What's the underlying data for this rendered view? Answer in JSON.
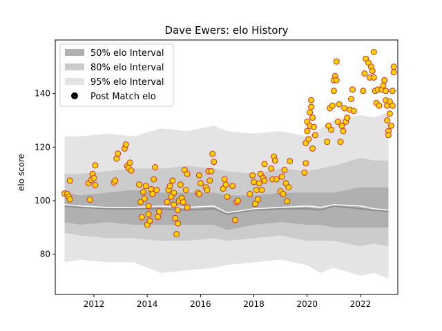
{
  "chart_data": {
    "type": "scatter",
    "title": "Dave Ewers: elo History",
    "xlabel": "",
    "ylabel": "elo score",
    "xlim": [
      2010.55,
      2023.4
    ],
    "ylim": [
      65,
      160
    ],
    "xticks": [
      2012,
      2014,
      2016,
      2018,
      2020,
      2022
    ],
    "xtick_labels": [
      "2012",
      "2014",
      "2016",
      "2018",
      "2020",
      "2022"
    ],
    "yticks": [
      80,
      100,
      120,
      140
    ],
    "ytick_labels": [
      "80",
      "100",
      "120",
      "140"
    ],
    "grid": false,
    "legend_position": "top-left",
    "legend": [
      {
        "label": "50% elo Interval",
        "kind": "patch",
        "color": "#b0b0b0"
      },
      {
        "label": "80% elo Interval",
        "kind": "patch",
        "color": "#cccccc"
      },
      {
        "label": "95% elo Interval",
        "kind": "patch",
        "color": "#e4e4e4"
      },
      {
        "label": "Post Match elo",
        "kind": "marker",
        "color": "#000000"
      }
    ],
    "colors": {
      "band95": "#e4e4e4",
      "band80": "#cccccc",
      "band50": "#b0b0b0",
      "median_line": "#8c8c8c",
      "mean_line": "#ffffff",
      "point_fill": "#ffd400",
      "point_edge": "#d12a2a"
    },
    "bands": {
      "x": [
        2010.9,
        2011.5,
        2012.5,
        2013.5,
        2014.5,
        2015.5,
        2016.5,
        2017.0,
        2018.0,
        2019.0,
        2020.0,
        2020.5,
        2021.0,
        2022.0,
        2022.5,
        2023.05
      ],
      "p2_5": [
        77,
        78,
        77,
        77,
        73,
        74,
        75,
        76,
        77,
        78,
        76,
        73,
        75,
        72,
        73,
        71
      ],
      "p10": [
        88,
        87,
        86,
        86,
        85,
        85,
        86,
        85,
        86,
        87,
        85,
        85,
        85,
        83,
        84,
        83
      ],
      "p25": [
        92,
        91,
        92,
        91,
        91,
        91,
        91,
        89,
        91,
        92,
        91,
        91,
        90,
        90,
        90,
        90
      ],
      "p50": [
        98,
        97.5,
        97,
        97,
        97,
        96.5,
        97,
        95,
        96.5,
        97,
        97,
        96.5,
        98,
        97,
        96.5,
        96
      ],
      "mean": [
        98.5,
        98,
        97.5,
        97.5,
        98,
        97.5,
        98,
        95.5,
        97,
        97.5,
        98,
        97.5,
        98.5,
        98,
        97,
        96.5
      ],
      "p75": [
        103,
        102,
        103,
        104,
        103,
        103,
        103,
        102,
        102,
        103,
        103,
        103,
        103,
        105,
        105,
        105
      ],
      "p90": [
        110,
        110,
        111,
        112,
        112,
        113,
        112,
        111,
        110,
        112,
        111,
        112,
        113,
        116,
        115,
        115
      ],
      "p97_5": [
        124,
        124,
        125,
        124,
        127,
        126,
        128,
        126,
        125,
        126,
        124,
        127,
        130,
        132,
        131,
        133
      ]
    },
    "series": [
      {
        "name": "Post Match elo",
        "points": [
          [
            2010.9,
            102.7
          ],
          [
            2011.0,
            102.5
          ],
          [
            2011.05,
            101.5
          ],
          [
            2011.1,
            100.5
          ],
          [
            2011.1,
            107.5
          ],
          [
            2011.8,
            106.5
          ],
          [
            2011.85,
            100.4
          ],
          [
            2011.9,
            107.8
          ],
          [
            2011.95,
            110
          ],
          [
            2012.0,
            108.5
          ],
          [
            2012.05,
            105.8
          ],
          [
            2012.05,
            113.2
          ],
          [
            2012.75,
            106.8
          ],
          [
            2012.8,
            107.5
          ],
          [
            2012.85,
            115.7
          ],
          [
            2012.9,
            117.6
          ],
          [
            2013.15,
            119.5
          ],
          [
            2013.2,
            121
          ],
          [
            2013.25,
            113
          ],
          [
            2013.3,
            112.2
          ],
          [
            2013.35,
            114.2
          ],
          [
            2013.4,
            111.3
          ],
          [
            2013.7,
            106
          ],
          [
            2013.75,
            99.5
          ],
          [
            2013.8,
            93.8
          ],
          [
            2013.85,
            103.3
          ],
          [
            2013.9,
            100.8
          ],
          [
            2013.95,
            105.5
          ],
          [
            2014.0,
            91
          ],
          [
            2014.05,
            95
          ],
          [
            2014.05,
            98
          ],
          [
            2014.1,
            92.5
          ],
          [
            2014.15,
            104.3
          ],
          [
            2014.2,
            102.5
          ],
          [
            2014.25,
            108
          ],
          [
            2014.3,
            112.5
          ],
          [
            2014.35,
            104
          ],
          [
            2014.4,
            94
          ],
          [
            2014.45,
            96
          ],
          [
            2014.75,
            99.5
          ],
          [
            2014.8,
            104
          ],
          [
            2014.85,
            105.5
          ],
          [
            2014.9,
            101.5
          ],
          [
            2014.95,
            107.5
          ],
          [
            2015.0,
            103
          ],
          [
            2015.0,
            98.5
          ],
          [
            2015.05,
            93.5
          ],
          [
            2015.1,
            87.5
          ],
          [
            2015.15,
            91.5
          ],
          [
            2015.15,
            96.5
          ],
          [
            2015.2,
            100
          ],
          [
            2015.25,
            106
          ],
          [
            2015.3,
            101
          ],
          [
            2015.35,
            99.5
          ],
          [
            2015.4,
            111.5
          ],
          [
            2015.45,
            104
          ],
          [
            2015.5,
            110
          ],
          [
            2015.5,
            97.5
          ],
          [
            2015.9,
            103
          ],
          [
            2015.95,
            109.5
          ],
          [
            2015.95,
            102.5
          ],
          [
            2016.0,
            106.5
          ],
          [
            2016.2,
            105
          ],
          [
            2016.25,
            104
          ],
          [
            2016.3,
            111
          ],
          [
            2016.35,
            107.5
          ],
          [
            2016.4,
            111
          ],
          [
            2016.45,
            117.5
          ],
          [
            2016.5,
            114.5
          ],
          [
            2016.85,
            104.5
          ],
          [
            2016.9,
            108
          ],
          [
            2016.95,
            106
          ],
          [
            2017.0,
            101.5
          ],
          [
            2017.2,
            105.5
          ],
          [
            2017.3,
            92.8
          ],
          [
            2017.35,
            99.5
          ],
          [
            2017.4,
            100
          ],
          [
            2017.85,
            102.5
          ],
          [
            2017.95,
            109.5
          ],
          [
            2018.0,
            107
          ],
          [
            2018.05,
            98.8
          ],
          [
            2018.1,
            104
          ],
          [
            2018.15,
            100.5
          ],
          [
            2018.2,
            106.5
          ],
          [
            2018.25,
            110
          ],
          [
            2018.3,
            104
          ],
          [
            2018.35,
            108.5
          ],
          [
            2018.4,
            113.7
          ],
          [
            2018.4,
            107.5
          ],
          [
            2018.65,
            112
          ],
          [
            2018.7,
            108
          ],
          [
            2018.75,
            116.5
          ],
          [
            2018.8,
            115
          ],
          [
            2018.85,
            108
          ],
          [
            2019.0,
            103.5
          ],
          [
            2019.05,
            109
          ],
          [
            2019.1,
            102.5
          ],
          [
            2019.15,
            111.5
          ],
          [
            2019.2,
            106.5
          ],
          [
            2019.25,
            99.8
          ],
          [
            2019.3,
            105
          ],
          [
            2019.35,
            114.8
          ],
          [
            2019.9,
            110.5
          ],
          [
            2019.95,
            114
          ],
          [
            2019.95,
            121.5
          ],
          [
            2020.0,
            126
          ],
          [
            2020.0,
            129.5
          ],
          [
            2020.05,
            123
          ],
          [
            2020.1,
            128
          ],
          [
            2020.1,
            133
          ],
          [
            2020.15,
            135
          ],
          [
            2020.15,
            137.5
          ],
          [
            2020.2,
            131
          ],
          [
            2020.2,
            119.5
          ],
          [
            2020.25,
            127.5
          ],
          [
            2020.3,
            124.5
          ],
          [
            2020.75,
            122
          ],
          [
            2020.8,
            128
          ],
          [
            2020.85,
            134.5
          ],
          [
            2020.9,
            126.5
          ],
          [
            2020.95,
            135.5
          ],
          [
            2021.0,
            141
          ],
          [
            2021.0,
            145
          ],
          [
            2021.05,
            146.5
          ],
          [
            2021.1,
            152
          ],
          [
            2021.1,
            145
          ],
          [
            2021.15,
            129.5
          ],
          [
            2021.2,
            136
          ],
          [
            2021.25,
            122
          ],
          [
            2021.3,
            128
          ],
          [
            2021.35,
            126
          ],
          [
            2021.4,
            134.5
          ],
          [
            2021.45,
            129.5
          ],
          [
            2021.5,
            131
          ],
          [
            2021.6,
            134
          ],
          [
            2021.65,
            138
          ],
          [
            2021.7,
            141.5
          ],
          [
            2021.75,
            133.5
          ],
          [
            2022.1,
            141
          ],
          [
            2022.15,
            147.5
          ],
          [
            2022.2,
            153
          ],
          [
            2022.3,
            151.5
          ],
          [
            2022.35,
            146
          ],
          [
            2022.4,
            150
          ],
          [
            2022.45,
            148.5
          ],
          [
            2022.5,
            155.5
          ],
          [
            2022.5,
            146
          ],
          [
            2022.55,
            141
          ],
          [
            2022.6,
            136.5
          ],
          [
            2022.65,
            141.5
          ],
          [
            2022.7,
            135.5
          ],
          [
            2022.8,
            141.5
          ],
          [
            2022.85,
            143
          ],
          [
            2022.9,
            145
          ],
          [
            2022.95,
            141
          ],
          [
            2022.95,
            137.5
          ],
          [
            2023.0,
            130
          ],
          [
            2023.0,
            135.5
          ],
          [
            2023.05,
            126
          ],
          [
            2023.05,
            124.5
          ],
          [
            2023.1,
            132.5
          ],
          [
            2023.1,
            137
          ],
          [
            2023.15,
            128
          ],
          [
            2023.2,
            141
          ],
          [
            2023.25,
            148
          ],
          [
            2023.25,
            150
          ],
          [
            2023.2,
            135.5
          ]
        ]
      }
    ]
  }
}
